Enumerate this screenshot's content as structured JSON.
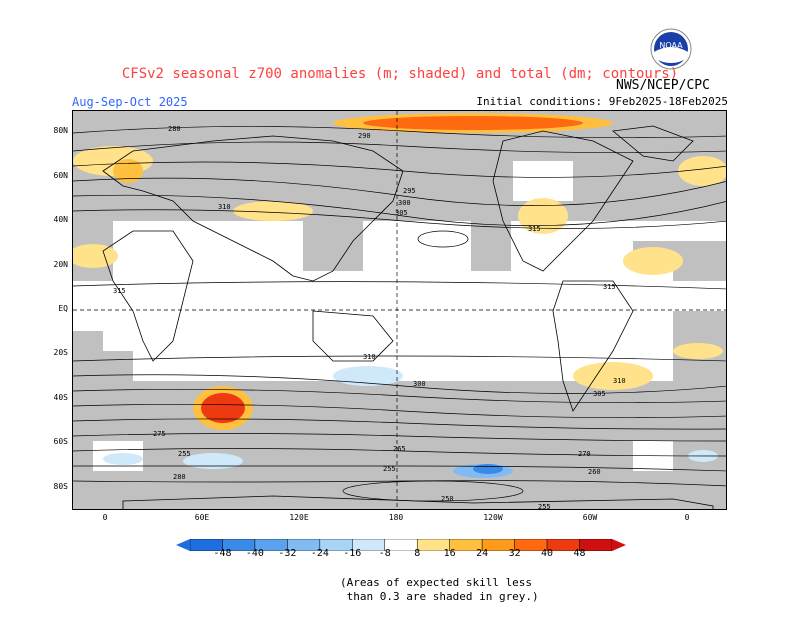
{
  "title": "CFSv2 seasonal z700 anomalies (m; shaded) and total (dm; contours)",
  "agency": "NWS/NCEP/CPC",
  "logo_text": "NOAA",
  "season": "Aug-Sep-Oct 2025",
  "initial_conditions": "Initial conditions: 9Feb2025-18Feb2025",
  "lat_labels": [
    "80N",
    "60N",
    "40N",
    "20N",
    "EQ",
    "20S",
    "40S",
    "60S",
    "80S"
  ],
  "lon_labels": [
    "0",
    "60E",
    "120E",
    "180",
    "120W",
    "60W",
    "0"
  ],
  "colorbar": {
    "ticks": [
      "-48",
      "-40",
      "-32",
      "-24",
      "-16",
      "-8",
      "8",
      "16",
      "24",
      "32",
      "40",
      "48"
    ],
    "colors": [
      "#1e6ee0",
      "#3a8ae8",
      "#5aa2ee",
      "#82baf2",
      "#a8d4f6",
      "#cfe8fa",
      "#ffffff",
      "#ffe28a",
      "#ffc040",
      "#ff9a1a",
      "#ff6a10",
      "#ee3a10",
      "#d01010"
    ]
  },
  "contour_labels": [
    "280",
    "290",
    "295",
    "300",
    "305",
    "310",
    "315",
    "255",
    "260",
    "265",
    "270",
    "275",
    "250"
  ],
  "note": "(Areas of expected skill less\n than 0.3 are shaded in grey.)"
}
